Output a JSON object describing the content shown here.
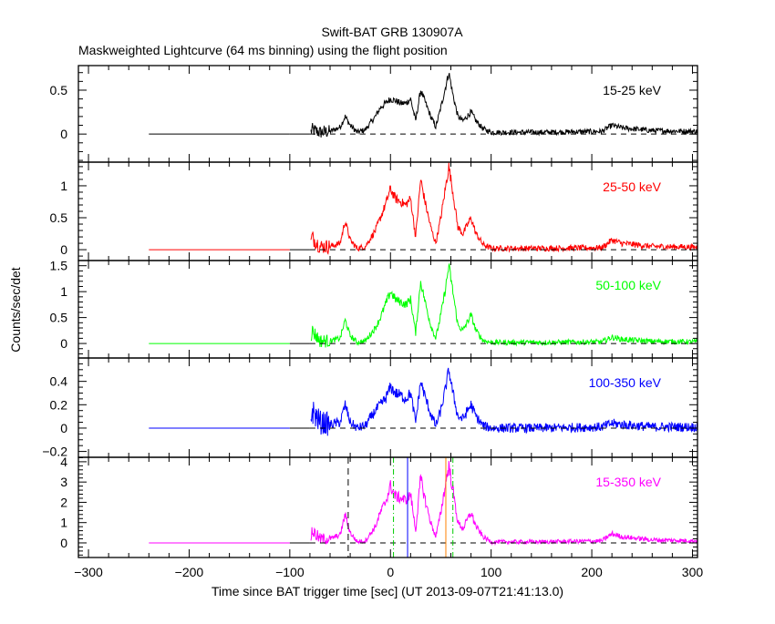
{
  "chart_data": {
    "type": "line",
    "title": "Swift-BAT GRB 130907A",
    "subtitle": "Maskweighted Lightcurve (64 ms binning) using the flight position",
    "xlabel": "Time since BAT trigger time [sec] (UT 2013-09-07T21:41:13.0)",
    "ylabel": "Counts/sec/det",
    "xlim": [
      -310,
      305
    ],
    "xticks": [
      -300,
      -200,
      -100,
      0,
      100,
      200,
      300
    ],
    "x": [
      -240,
      -80,
      -78,
      -70,
      -60,
      -50,
      -45,
      -40,
      -33,
      -25,
      -15,
      -10,
      -5,
      0,
      5,
      10,
      15,
      20,
      25,
      30,
      35,
      40,
      45,
      50,
      55,
      58,
      62,
      67,
      72,
      80,
      85,
      92,
      100,
      150,
      210,
      220,
      230,
      260,
      305
    ],
    "series": [
      {
        "name": "15-25 keV",
        "color": "#000000",
        "noise_sigma": 0.03,
        "ylim": [
          -0.32,
          0.78
        ],
        "yticks": [
          0,
          0.5
        ],
        "ytick_labels": [
          "0",
          "0.5"
        ],
        "yminor": 0.1,
        "values": [
          0,
          0,
          0.05,
          0.02,
          0.03,
          0.08,
          0.2,
          0.1,
          0.02,
          0.05,
          0.2,
          0.3,
          0.35,
          0.4,
          0.38,
          0.35,
          0.35,
          0.4,
          0.15,
          0.5,
          0.35,
          0.2,
          0.08,
          0.3,
          0.55,
          0.7,
          0.45,
          0.2,
          0.15,
          0.25,
          0.15,
          0.06,
          0.02,
          0.02,
          0.03,
          0.1,
          0.07,
          0.04,
          0.03
        ]
      },
      {
        "name": "25-50 keV",
        "color": "#ff0000",
        "noise_sigma": 0.045,
        "ylim": [
          -0.17,
          1.37
        ],
        "yticks": [
          0,
          0.5,
          1
        ],
        "ytick_labels": [
          "0",
          "0.5",
          "1"
        ],
        "yminor": 0.1,
        "values": [
          0,
          0,
          0.2,
          0.05,
          0.05,
          0.1,
          0.45,
          0.15,
          0.02,
          0.05,
          0.3,
          0.5,
          0.7,
          0.95,
          0.8,
          0.75,
          0.7,
          0.8,
          0.2,
          1.1,
          0.7,
          0.35,
          0.1,
          0.5,
          1.0,
          1.3,
          0.9,
          0.35,
          0.25,
          0.5,
          0.25,
          0.08,
          0.02,
          0.02,
          0.03,
          0.15,
          0.1,
          0.05,
          0.04
        ]
      },
      {
        "name": "50-100 keV",
        "color": "#00ff00",
        "noise_sigma": 0.05,
        "ylim": [
          -0.28,
          1.6
        ],
        "yticks": [
          0,
          0.5,
          1,
          1.5
        ],
        "ytick_labels": [
          "0",
          "0.5",
          "1",
          "1.5"
        ],
        "yminor": 0.1,
        "values": [
          0,
          0,
          0.25,
          0.05,
          0.05,
          0.1,
          0.45,
          0.15,
          0.02,
          0.05,
          0.3,
          0.5,
          0.75,
          1.0,
          0.85,
          0.8,
          0.75,
          0.85,
          0.2,
          1.2,
          0.75,
          0.35,
          0.1,
          0.55,
          1.1,
          1.5,
          1.0,
          0.35,
          0.25,
          0.55,
          0.25,
          0.06,
          0.02,
          0.02,
          0.03,
          0.12,
          0.08,
          0.04,
          0.03
        ]
      },
      {
        "name": "100-350 keV",
        "color": "#0000ff",
        "noise_sigma": 0.04,
        "ylim": [
          -0.25,
          0.6
        ],
        "yticks": [
          -0.2,
          0,
          0.2,
          0.4
        ],
        "ytick_labels": [
          "−0.2",
          "0",
          "0.2",
          "0.4"
        ],
        "yminor": 0.05,
        "values": [
          0,
          0,
          0.15,
          0.05,
          0.03,
          0.05,
          0.2,
          0.05,
          0.0,
          0.02,
          0.15,
          0.2,
          0.25,
          0.35,
          0.3,
          0.28,
          0.25,
          0.3,
          0.05,
          0.4,
          0.25,
          0.12,
          0.02,
          0.15,
          0.35,
          0.5,
          0.3,
          0.1,
          0.08,
          0.2,
          0.1,
          0.02,
          0.0,
          0.0,
          0.01,
          0.04,
          0.03,
          0.01,
          0.01
        ]
      },
      {
        "name": "15-350 keV",
        "color": "#ff00ff",
        "noise_sigma": 0.1,
        "ylim": [
          -0.72,
          4.22
        ],
        "yticks": [
          0,
          1,
          2,
          3,
          4
        ],
        "ytick_labels": [
          "0",
          "1",
          "2",
          "3",
          "4"
        ],
        "yminor": 0.2,
        "values": [
          0,
          0,
          0.6,
          0.2,
          0.2,
          0.4,
          1.4,
          0.5,
          0.05,
          0.1,
          0.8,
          1.5,
          2.0,
          2.8,
          2.3,
          2.2,
          2.1,
          2.4,
          0.6,
          3.2,
          2.0,
          1.0,
          0.3,
          1.5,
          3.0,
          3.8,
          2.6,
          1.0,
          0.7,
          1.5,
          0.8,
          0.3,
          0.05,
          0.05,
          0.1,
          0.45,
          0.3,
          0.15,
          0.1
        ]
      }
    ],
    "vertical_markers": [
      {
        "x": -42,
        "color": "#000000",
        "style": "dashed"
      },
      {
        "x": 3,
        "color": "#00cc00",
        "style": "dashdot"
      },
      {
        "x": 17,
        "color": "#0000ff",
        "style": "solid"
      },
      {
        "x": 55,
        "color": "#ff8000",
        "style": "solid"
      },
      {
        "x": 62,
        "color": "#00cc00",
        "style": "dashdot"
      }
    ],
    "grid": false
  }
}
